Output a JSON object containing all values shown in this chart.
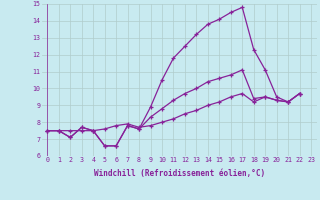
{
  "xlabel": "Windchill (Refroidissement éolien,°C)",
  "bg_color": "#c8eaf0",
  "grid_color": "#b0cccc",
  "line_color": "#882299",
  "xlim": [
    -0.5,
    23.5
  ],
  "ylim": [
    6,
    15
  ],
  "xtick_vals": [
    0,
    1,
    2,
    3,
    4,
    5,
    6,
    7,
    8,
    9,
    10,
    11,
    12,
    13,
    14,
    15,
    16,
    17,
    18,
    19,
    20,
    21,
    22,
    23
  ],
  "xtick_labels": [
    "0",
    "1",
    "2",
    "3",
    "4",
    "5",
    "6",
    "7",
    "8",
    "9",
    "10",
    "11",
    "12",
    "13",
    "14",
    "15",
    "16",
    "17",
    "18",
    "19",
    "20",
    "21",
    "22",
    "23"
  ],
  "ytick_vals": [
    6,
    7,
    8,
    9,
    10,
    11,
    12,
    13,
    14,
    15
  ],
  "ytick_labels": [
    "6",
    "7",
    "8",
    "9",
    "10",
    "11",
    "12",
    "13",
    "14",
    "15"
  ],
  "series": [
    {
      "x": [
        0,
        1,
        2,
        3,
        4,
        5,
        6,
        7,
        8,
        9,
        10,
        11,
        12,
        13,
        14,
        15,
        16,
        17,
        18,
        19,
        20,
        21,
        22
      ],
      "y": [
        7.5,
        7.5,
        7.1,
        7.7,
        7.5,
        6.6,
        6.6,
        7.8,
        7.6,
        8.9,
        10.5,
        11.8,
        12.5,
        13.2,
        13.8,
        14.1,
        14.5,
        14.8,
        12.3,
        11.1,
        9.5,
        9.2,
        9.7
      ]
    },
    {
      "x": [
        0,
        1,
        2,
        3,
        4,
        5,
        6,
        7,
        8,
        9,
        10,
        11,
        12,
        13,
        14,
        15,
        16,
        17,
        18,
        19,
        20,
        21,
        22
      ],
      "y": [
        7.5,
        7.5,
        7.1,
        7.7,
        7.5,
        6.6,
        6.6,
        7.8,
        7.6,
        8.3,
        8.8,
        9.3,
        9.7,
        10.0,
        10.4,
        10.6,
        10.8,
        11.1,
        9.4,
        9.5,
        9.3,
        9.2,
        9.7
      ]
    },
    {
      "x": [
        0,
        1,
        2,
        3,
        4,
        5,
        6,
        7,
        8,
        9,
        10,
        11,
        12,
        13,
        14,
        15,
        16,
        17,
        18,
        19,
        20,
        21,
        22
      ],
      "y": [
        7.5,
        7.5,
        7.5,
        7.5,
        7.5,
        7.6,
        7.8,
        7.9,
        7.7,
        7.8,
        8.0,
        8.2,
        8.5,
        8.7,
        9.0,
        9.2,
        9.5,
        9.7,
        9.2,
        9.5,
        9.3,
        9.2,
        9.7
      ]
    }
  ],
  "xlabel_fontsize": 5.5,
  "tick_fontsize": 4.8,
  "linewidth": 0.9,
  "markersize": 3.0
}
